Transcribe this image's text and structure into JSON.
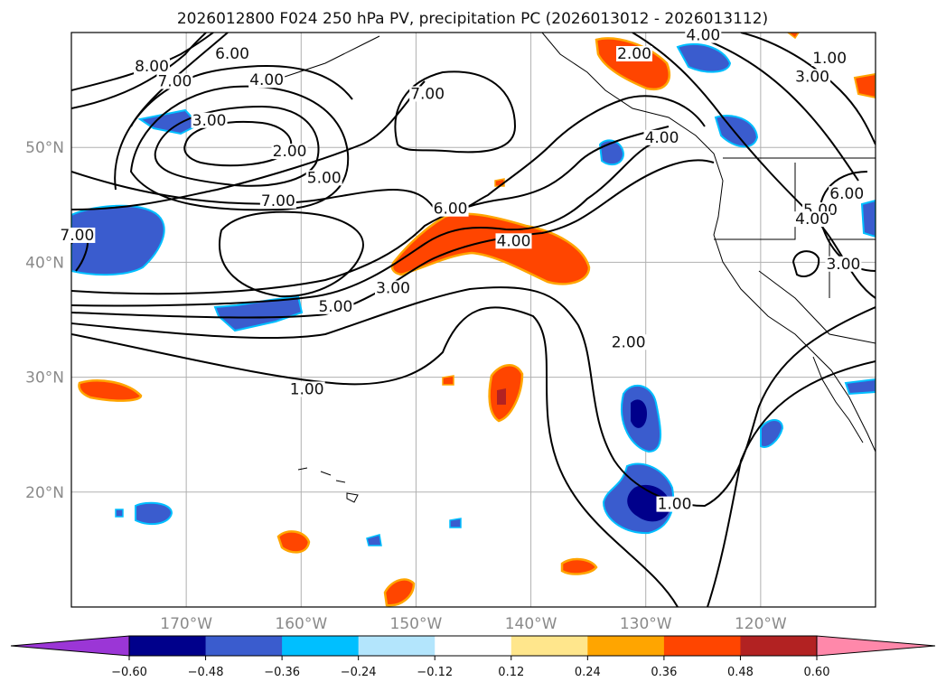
{
  "chart_data": {
    "type": "map",
    "title": "2026012800 F024 250 hPa PV, precipitation PC (2026013012 - 2026013112)",
    "lat_ticks": [
      {
        "value": 50,
        "label": "50°N"
      },
      {
        "value": 40,
        "label": "40°N"
      },
      {
        "value": 30,
        "label": "30°N"
      },
      {
        "value": 20,
        "label": "20°N"
      }
    ],
    "lon_ticks": [
      {
        "value": -170,
        "label": "170°W"
      },
      {
        "value": -160,
        "label": "160°W"
      },
      {
        "value": -150,
        "label": "150°W"
      },
      {
        "value": -140,
        "label": "140°W"
      },
      {
        "value": -130,
        "label": "130°W"
      },
      {
        "value": -120,
        "label": "120°W"
      }
    ],
    "colorbar": {
      "colors": [
        "#9b36d6",
        "#00008b",
        "#3a5cce",
        "#00bfff",
        "#b3e5fc",
        "#ffffff",
        "#ffe68c",
        "#ffa500",
        "#ff4500",
        "#b22222",
        "#ff88aa"
      ],
      "ticks": [
        "−0.60",
        "−0.48",
        "−0.36",
        "−0.24",
        "−0.12",
        "0.12",
        "0.24",
        "0.36",
        "0.48",
        "0.60"
      ]
    },
    "pv_contour_labels": [
      {
        "text": "8.00",
        "lon": -173,
        "lat": 56.7
      },
      {
        "text": "7.00",
        "lon": -171,
        "lat": 55.4
      },
      {
        "text": "6.00",
        "lon": -166,
        "lat": 57.8
      },
      {
        "text": "4.00",
        "lon": -163,
        "lat": 55.5
      },
      {
        "text": "3.00",
        "lon": -168,
        "lat": 52
      },
      {
        "text": "2.00",
        "lon": -161,
        "lat": 49.3
      },
      {
        "text": "5.00",
        "lon": -158,
        "lat": 47
      },
      {
        "text": "7.00",
        "lon": -162,
        "lat": 45
      },
      {
        "text": "7.00",
        "lon": -149,
        "lat": 54.3
      },
      {
        "text": "6.00",
        "lon": -147,
        "lat": 44.3
      },
      {
        "text": "4.00",
        "lon": -141.5,
        "lat": 41.5
      },
      {
        "text": "3.00",
        "lon": -152,
        "lat": 37.4
      },
      {
        "text": "5.00",
        "lon": -157,
        "lat": 35.8
      },
      {
        "text": "1.00",
        "lon": -159.5,
        "lat": 28.6
      },
      {
        "text": "2.00",
        "lon": -131.5,
        "lat": 32.7
      },
      {
        "text": "1.00",
        "lon": -127.5,
        "lat": 18.6
      },
      {
        "text": "2.00",
        "lon": -131,
        "lat": 57.8
      },
      {
        "text": "4.00",
        "lon": -125,
        "lat": 59.4
      },
      {
        "text": "4.00",
        "lon": -128.6,
        "lat": 50.5
      },
      {
        "text": "1.00",
        "lon": -114,
        "lat": 57.4
      },
      {
        "text": "3.00",
        "lon": -115.5,
        "lat": 55.8
      },
      {
        "text": "6.00",
        "lon": -112.5,
        "lat": 45.6
      },
      {
        "text": "5.00",
        "lon": -114.8,
        "lat": 44.2
      },
      {
        "text": "4.00",
        "lon": -115.5,
        "lat": 43.4
      },
      {
        "text": "3.00",
        "lon": -112.8,
        "lat": 39.5
      },
      {
        "text": "7.00",
        "lon": -179.5,
        "lat": 42
      }
    ]
  }
}
